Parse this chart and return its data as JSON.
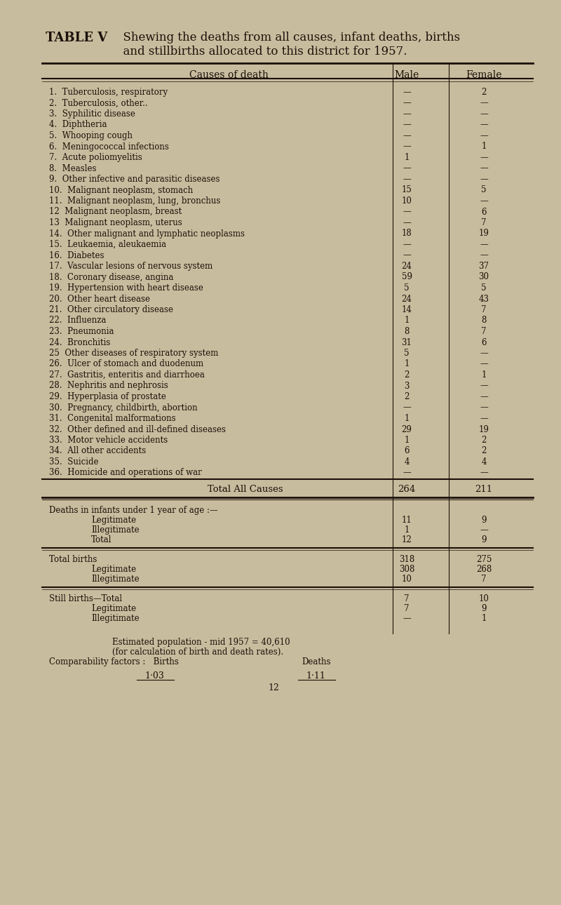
{
  "title_bold": "TABLE V",
  "title_text": "Shewing the deaths from all causes, infant deaths, births\n          and stillbirths allocated to this district for 1957.",
  "bg_color": "#c8bc9e",
  "header": [
    "Causes of death",
    "Male",
    "Female"
  ],
  "rows": [
    [
      "1.  Tuberculosis, respiratory",
      "—",
      "2"
    ],
    [
      "2.  Tuberculosis, other..",
      "—",
      "—"
    ],
    [
      "3.  Syphilitic disease",
      "—",
      "—"
    ],
    [
      "4.  Diphtheria",
      "—",
      "—"
    ],
    [
      "5.  Whooping cough",
      "—",
      "—"
    ],
    [
      "6.  Meningococcal infections",
      "—",
      "1"
    ],
    [
      "7.  Acute poliomyelitis",
      "1",
      "—"
    ],
    [
      "8.  Measles",
      "—",
      "—"
    ],
    [
      "9.  Other infective and parasitic diseases",
      "—",
      "—"
    ],
    [
      "10.  Malignant neoplasm, stomach",
      "15",
      "5"
    ],
    [
      "11.  Malignant neoplasm, lung, bronchus",
      "10",
      "—"
    ],
    [
      "12  Malignant neoplasm, breast",
      "—",
      "6"
    ],
    [
      "13  Malignant neoplasm, uterus",
      "—",
      "7"
    ],
    [
      "14.  Other malignant and lymphatic neoplasms",
      "18",
      "19"
    ],
    [
      "15.  Leukaemia, aleukaemia",
      "—",
      "—"
    ],
    [
      "16.  Diabetes",
      "—",
      "—"
    ],
    [
      "17.  Vascular lesions of nervous system",
      "24",
      "37"
    ],
    [
      "18.  Coronary disease, angina",
      "59",
      "30"
    ],
    [
      "19.  Hypertension with heart disease",
      "5",
      "5"
    ],
    [
      "20.  Other heart disease",
      "24",
      "43"
    ],
    [
      "21.  Other circulatory disease",
      "14",
      "7"
    ],
    [
      "22.  Influenza",
      "1",
      "8"
    ],
    [
      "23.  Pneumonia",
      "8",
      "7"
    ],
    [
      "24.  Bronchitis",
      "31",
      "6"
    ],
    [
      "25  Other diseases of respiratory system",
      "5",
      "—"
    ],
    [
      "26.  Ulcer of stomach and duodenum",
      "1",
      "—"
    ],
    [
      "27.  Gastritis, enteritis and diarrhoea",
      "2",
      "1"
    ],
    [
      "28.  Nephritis and nephrosis",
      "3",
      "—"
    ],
    [
      "29.  Hyperplasia of prostate",
      "2",
      "—"
    ],
    [
      "30.  Pregnancy, childbirth, abortion",
      "—",
      "—"
    ],
    [
      "31.  Congenital malformations",
      "1",
      "—"
    ],
    [
      "32.  Other defined and ill-defined diseases",
      "29",
      "19"
    ],
    [
      "33.  Motor vehicle accidents",
      "1",
      "2"
    ],
    [
      "34.  All other accidents",
      "6",
      "2"
    ],
    [
      "35.  Suicide",
      "4",
      "4"
    ],
    [
      "36.  Homicide and operations of war",
      "—",
      "—"
    ]
  ],
  "total_row": [
    "Total All Causes",
    "264",
    "211"
  ],
  "infant_header": "Deaths in infants under 1 year of age :—",
  "infant_rows": [
    [
      "Legitimate",
      "11",
      "9"
    ],
    [
      "Illegitimate",
      "1",
      "—"
    ],
    [
      "Total",
      "12",
      "9"
    ]
  ],
  "births_header": "Total births",
  "births_rows": [
    [
      "Total births",
      "318",
      "275"
    ],
    [
      "Legitimate",
      "308",
      "268"
    ],
    [
      "Illegitimate",
      "10",
      "7"
    ]
  ],
  "stillbirths_header": "Still births—Total",
  "stillbirths_rows": [
    [
      "Still births—Total",
      "7",
      "10"
    ],
    [
      "Legitimate",
      "7",
      "9"
    ],
    [
      "Illegitimate",
      "—",
      "1"
    ]
  ],
  "footer_lines": [
    "Estimated population - mid 1957 = 40,610",
    "(for calculation of birth and death rates).",
    "Comparability factors :   Births          Deaths",
    "1·03                    1·11",
    "12"
  ]
}
